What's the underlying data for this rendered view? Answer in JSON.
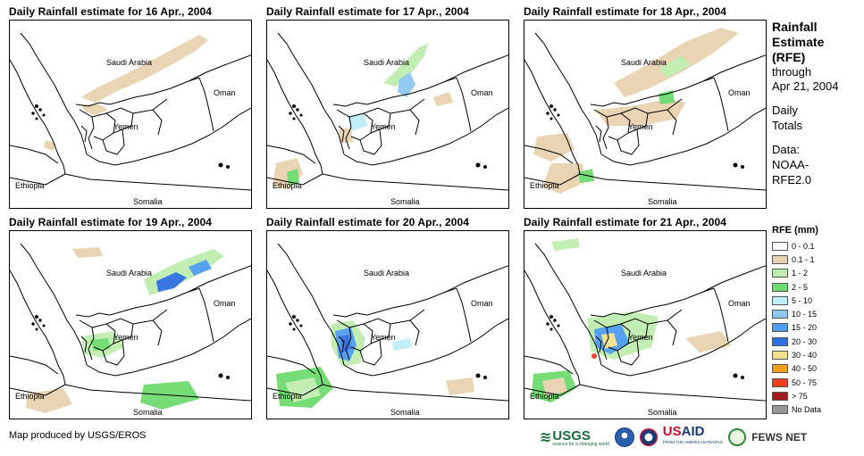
{
  "panels": [
    {
      "title": "Daily Rainfall estimate for 16 Apr., 2004"
    },
    {
      "title": "Daily Rainfall estimate for 17 Apr., 2004"
    },
    {
      "title": "Daily Rainfall estimate for 18 Apr., 2004"
    },
    {
      "title": "Daily Rainfall estimate for 19 Apr., 2004"
    },
    {
      "title": "Daily Rainfall estimate for 20 Apr., 2004"
    },
    {
      "title": "Daily Rainfall estimate for 21 Apr., 2004"
    }
  ],
  "map_labels": {
    "saudi": "Saudi Arabia",
    "oman": "Oman",
    "yemen": "Yemen",
    "ethiopia": "Ethiopia",
    "somalia": "Somalia"
  },
  "side": {
    "title_line1": "Rainfall",
    "title_line2": "Estimate",
    "title_line3": "(RFE)",
    "sub_line1": "through",
    "sub_line2": "Apr 21, 2004",
    "daily_line1": "Daily",
    "daily_line2": "Totals",
    "data_line1": "Data:",
    "data_line2": "NOAA-",
    "data_line3": "RFE2.0"
  },
  "legend": {
    "title": "RFE (mm)",
    "items": [
      {
        "label": "0 - 0.1",
        "color": "#ffffff"
      },
      {
        "label": "0.1 - 1",
        "color": "#e8d2b0"
      },
      {
        "label": "1 - 2",
        "color": "#bfeeb0"
      },
      {
        "label": "2 - 5",
        "color": "#6fdc6f"
      },
      {
        "label": "5 - 10",
        "color": "#bfeefc"
      },
      {
        "label": "10 - 15",
        "color": "#8cc8f2"
      },
      {
        "label": "15 - 20",
        "color": "#4e9ef0"
      },
      {
        "label": "20 - 30",
        "color": "#2f6fe0"
      },
      {
        "label": "30 - 40",
        "color": "#f2e08c"
      },
      {
        "label": "40 - 50",
        "color": "#f0a01e"
      },
      {
        "label": "50 - 75",
        "color": "#f23c1e"
      },
      {
        "label": "> 75",
        "color": "#a01e1e"
      },
      {
        "label": "No Data",
        "color": "#969696"
      }
    ]
  },
  "credit": "Map produced by USGS/EROS",
  "logos": {
    "usgs": "USGS",
    "usgs_tag": "science for a changing world",
    "usaid_prefix": "US",
    "usaid_suffix": "AID",
    "usaid_tag": "FROM THE AMERICAN PEOPLE",
    "fews": "FEWS NET"
  }
}
